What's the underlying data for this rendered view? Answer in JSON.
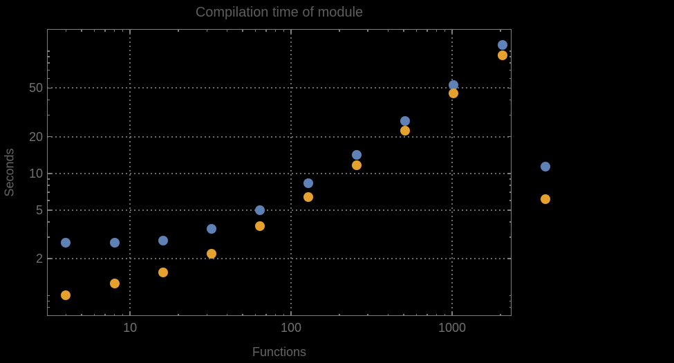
{
  "title": "Compilation time of module",
  "colors": {
    "background": "#000000",
    "frame": "#7e7e7e",
    "grid": "#6d6d6d",
    "title_text": "#5c5c5c",
    "tick_text": "#717171",
    "axis_label_text": "#636363",
    "series_blue": "#5e82b6",
    "series_orange": "#e5a02d"
  },
  "chart_data": {
    "type": "scatter",
    "title": "Compilation time of module",
    "xlabel": "Functions",
    "ylabel": "Seconds",
    "x_scale": "log",
    "y_scale": "log",
    "xlim": [
      3.05,
      2340
    ],
    "ylim": [
      0.68,
      152
    ],
    "x_major_ticks": [
      10,
      100,
      1000
    ],
    "x_major_tick_labels": [
      "10",
      "100",
      "1000"
    ],
    "x_minor_ticks": [
      4,
      5,
      6,
      7,
      8,
      9,
      20,
      30,
      40,
      50,
      60,
      70,
      80,
      90,
      200,
      300,
      400,
      500,
      600,
      700,
      800,
      900,
      2000
    ],
    "y_major_ticks": [
      2,
      5,
      10,
      20,
      50
    ],
    "y_major_tick_labels": [
      "2",
      "5",
      "10",
      "20",
      "50"
    ],
    "y_minor_ticks": [
      0.8,
      0.9,
      1,
      3,
      4,
      6,
      7,
      8,
      9,
      30,
      40,
      60,
      70,
      80,
      90,
      100
    ],
    "grid": "dotted-at-major-ticks",
    "legend_position": "right-outside",
    "x": [
      4,
      8,
      16,
      32,
      64,
      128,
      256,
      512,
      1024,
      2048
    ],
    "series": [
      {
        "name": "blue-series",
        "color": "#5e82b6",
        "values": [
          2.7,
          2.7,
          2.8,
          3.5,
          5.0,
          8.3,
          14.2,
          26.7,
          53,
          113
        ]
      },
      {
        "name": "orange-series",
        "color": "#e5a02d",
        "values": [
          1.0,
          1.25,
          1.55,
          2.2,
          3.7,
          6.4,
          11.7,
          22.4,
          45,
          93
        ]
      }
    ]
  },
  "legend": {
    "entries": [
      {
        "name": "blue-series",
        "color": "#5e82b6",
        "label": ""
      },
      {
        "name": "orange-series",
        "color": "#e5a02d",
        "label": ""
      }
    ]
  }
}
